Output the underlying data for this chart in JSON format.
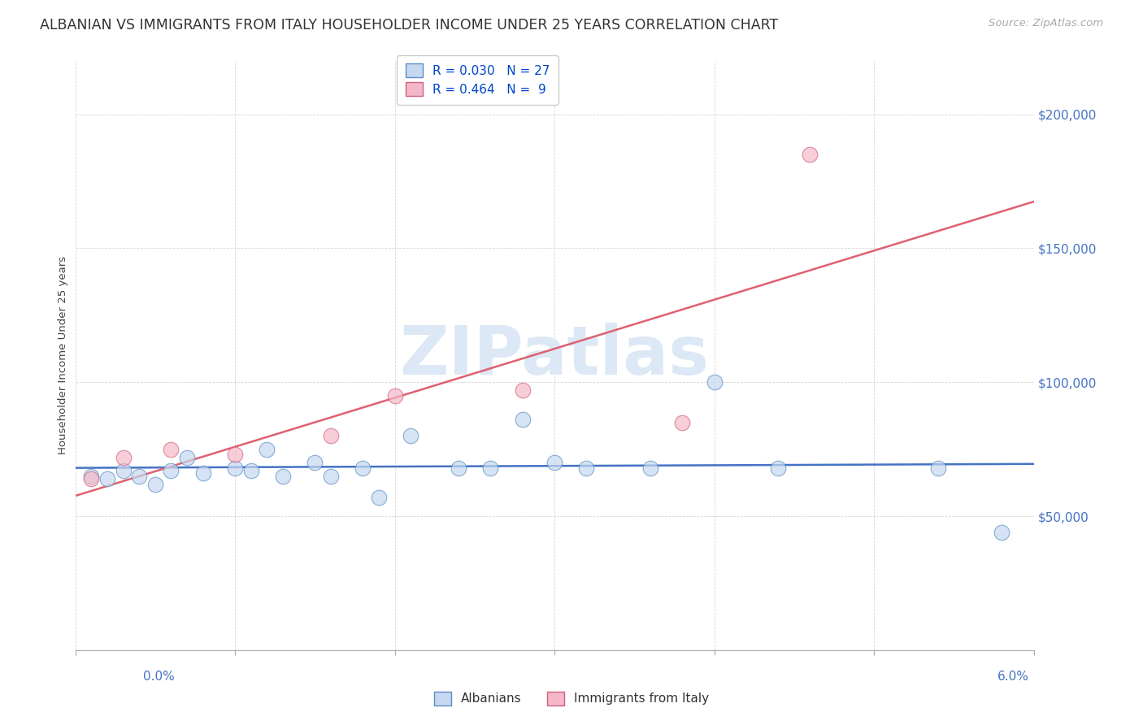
{
  "title": "ALBANIAN VS IMMIGRANTS FROM ITALY HOUSEHOLDER INCOME UNDER 25 YEARS CORRELATION CHART",
  "source": "Source: ZipAtlas.com",
  "ylabel": "Householder Income Under 25 years",
  "legend_albanians": "Albanians",
  "legend_italy": "Immigrants from Italy",
  "r_albanian": 0.03,
  "n_albanian": 27,
  "r_italy": 0.464,
  "n_italy": 9,
  "albanian_fill": "#c5d8f0",
  "albanian_edge": "#5b8ec4",
  "italy_fill": "#f5b8c8",
  "italy_edge": "#d06080",
  "albanian_line": "#4472c4",
  "italy_line": "#e06070",
  "albanians_x": [
    0.001,
    0.002,
    0.003,
    0.004,
    0.005,
    0.006,
    0.007,
    0.008,
    0.01,
    0.011,
    0.012,
    0.013,
    0.015,
    0.016,
    0.018,
    0.019,
    0.021,
    0.024,
    0.026,
    0.028,
    0.03,
    0.032,
    0.036,
    0.04,
    0.044,
    0.054,
    0.058
  ],
  "albanians_y": [
    65000,
    64000,
    67000,
    65000,
    62000,
    67000,
    72000,
    66000,
    68000,
    67000,
    75000,
    65000,
    70000,
    65000,
    68000,
    57000,
    80000,
    68000,
    68000,
    86000,
    70000,
    68000,
    68000,
    100000,
    68000,
    68000,
    44000
  ],
  "italy_x": [
    0.001,
    0.003,
    0.006,
    0.01,
    0.016,
    0.02,
    0.028,
    0.038,
    0.046
  ],
  "italy_y": [
    64000,
    72000,
    75000,
    73000,
    80000,
    95000,
    97000,
    85000,
    185000
  ],
  "xmin": 0.0,
  "xmax": 0.06,
  "ymin": 0,
  "ymax": 220000,
  "yticks": [
    50000,
    100000,
    150000,
    200000
  ],
  "ytick_labels": [
    "$50,000",
    "$100,000",
    "$150,000",
    "$200,000"
  ],
  "xtick_label_left": "0.0%",
  "xtick_label_right": "6.0%",
  "background_color": "#ffffff",
  "grid_color": "#cccccc",
  "title_color": "#333333",
  "axis_label_color": "#4472c4",
  "watermark_text": "ZIPatlas",
  "watermark_color": "#dce8f5",
  "title_fontsize": 12.5,
  "source_fontsize": 9.5,
  "legend_fontsize": 11,
  "ylabel_fontsize": 9.5,
  "tick_fontsize": 11,
  "scatter_size": 180,
  "scatter_alpha": 0.7,
  "line_width": 1.8
}
